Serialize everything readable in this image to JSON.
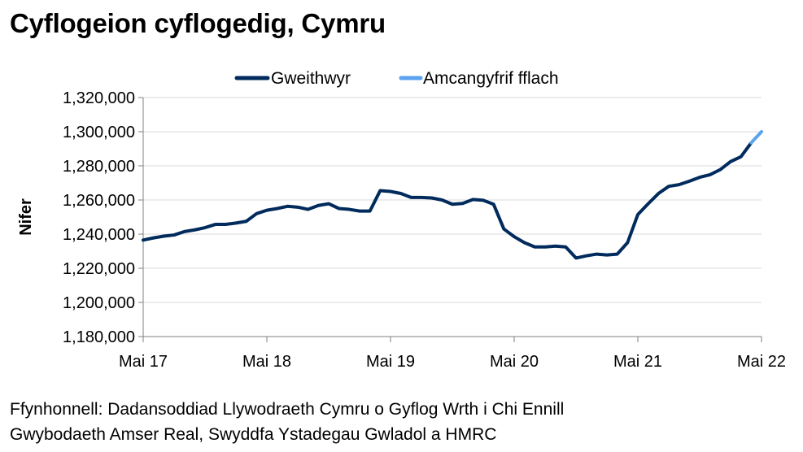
{
  "title": "Cyflogeion cyflogedig, Cymru",
  "source": [
    "Ffynhonnell: Dadansoddiad Llywodraeth Cymru o Gyflog Wrth i Chi Ennill",
    "Gwybodaeth Amser Real, Swyddfa Ystadegau Gwladol a HMRC"
  ],
  "colors": {
    "series": "#002b5c",
    "flash": "#5ba3f0",
    "grid": "#d9d9d9",
    "axis": "#808080"
  },
  "chart_data": {
    "type": "line",
    "title": "Cyflogeion cyflogedig, Cymru",
    "xlabel": "",
    "ylabel": "Nifer",
    "ylim": [
      1180000,
      1320000
    ],
    "yticks": [
      1180000,
      1200000,
      1220000,
      1240000,
      1260000,
      1280000,
      1300000,
      1320000
    ],
    "ytick_labels": [
      "1,180,000",
      "1,200,000",
      "1,220,000",
      "1,240,000",
      "1,260,000",
      "1,280,000",
      "1,300,000",
      "1,320,000"
    ],
    "x_tick_labels": [
      "Mai 17",
      "Mai 18",
      "Mai 19",
      "Mai 20",
      "Mai 21",
      "Mai 22"
    ],
    "x_tick_index": [
      0,
      12,
      24,
      36,
      48,
      60
    ],
    "grid": true,
    "legend_position": "top-center",
    "series": [
      {
        "name": "Gweithwyr",
        "start_index": 0,
        "values": [
          1236500,
          1237800,
          1238800,
          1239500,
          1241500,
          1242500,
          1243800,
          1245700,
          1245700,
          1246500,
          1247500,
          1252000,
          1254000,
          1255000,
          1256300,
          1255800,
          1254500,
          1256800,
          1257800,
          1255000,
          1254500,
          1253500,
          1253500,
          1265500,
          1265000,
          1263800,
          1261500,
          1261500,
          1261200,
          1260000,
          1257500,
          1258000,
          1260300,
          1259800,
          1257500,
          1243000,
          1238500,
          1235000,
          1232500,
          1232500,
          1233000,
          1232500,
          1226000,
          1227300,
          1228300,
          1227800,
          1228300,
          1235000,
          1251500,
          1257800,
          1263800,
          1268000,
          1269000,
          1271000,
          1273300,
          1274800,
          1277800,
          1282500,
          1285300,
          1293500
        ]
      },
      {
        "name": "Amcangyfrif fflach",
        "start_index": 59,
        "values": [
          1293500,
          1300000
        ]
      }
    ]
  }
}
